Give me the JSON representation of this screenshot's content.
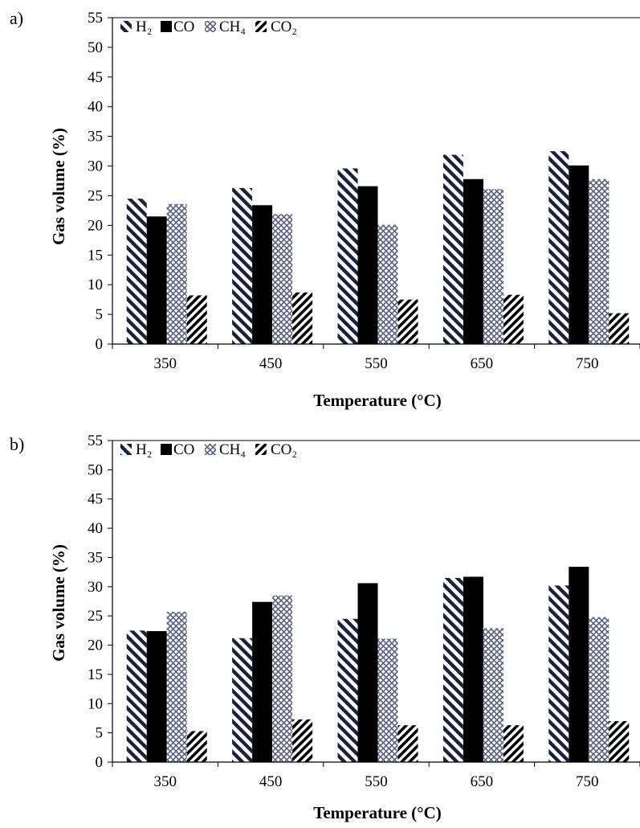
{
  "colors": {
    "h2": "#1a1f3d",
    "co": "#000000",
    "ch4": "#5a5f80",
    "co2": "#000000",
    "axis": "#000000"
  },
  "chart_data": [
    {
      "panel_label": "a)",
      "type": "bar",
      "categories": [
        "350",
        "450",
        "550",
        "650",
        "750"
      ],
      "series": [
        {
          "name": "H₂",
          "pattern": "hatch-backslash",
          "values": [
            24.5,
            26.3,
            29.6,
            31.9,
            32.5
          ]
        },
        {
          "name": "CO",
          "pattern": "solid",
          "values": [
            21.5,
            23.4,
            26.6,
            27.8,
            30.1
          ]
        },
        {
          "name": "CH₄",
          "pattern": "crosshatch",
          "values": [
            23.6,
            21.9,
            20.1,
            26.1,
            27.8
          ]
        },
        {
          "name": "CO₂",
          "pattern": "hatch-slash",
          "values": [
            8.2,
            8.7,
            7.5,
            8.3,
            5.2
          ]
        }
      ],
      "xlabel": "Temperature (°C)",
      "ylabel": "Gas volume (%)",
      "ylim": [
        0,
        55
      ],
      "yticks": [
        "0",
        "5",
        "10",
        "15",
        "20",
        "25",
        "30",
        "35",
        "40",
        "45",
        "50",
        "55"
      ],
      "legend_position": "top-left",
      "grid": false
    },
    {
      "panel_label": "b)",
      "type": "bar",
      "categories": [
        "350",
        "450",
        "550",
        "650",
        "750"
      ],
      "series": [
        {
          "name": "H₂",
          "pattern": "hatch-backslash",
          "values": [
            22.5,
            21.2,
            24.5,
            31.5,
            30.2
          ]
        },
        {
          "name": "CO",
          "pattern": "solid",
          "values": [
            22.4,
            27.4,
            30.6,
            31.7,
            33.4
          ]
        },
        {
          "name": "CH₄",
          "pattern": "crosshatch",
          "values": [
            25.7,
            28.5,
            21.1,
            22.9,
            24.8
          ]
        },
        {
          "name": "CO₂",
          "pattern": "hatch-slash",
          "values": [
            5.3,
            7.3,
            6.3,
            6.3,
            7.0
          ]
        }
      ],
      "xlabel": "Temperature (°C)",
      "ylabel": "Gas volume (%)",
      "ylim": [
        0,
        55
      ],
      "yticks": [
        "0",
        "5",
        "10",
        "15",
        "20",
        "25",
        "30",
        "35",
        "40",
        "45",
        "50",
        "55"
      ],
      "legend_position": "top-left",
      "grid": false
    }
  ]
}
